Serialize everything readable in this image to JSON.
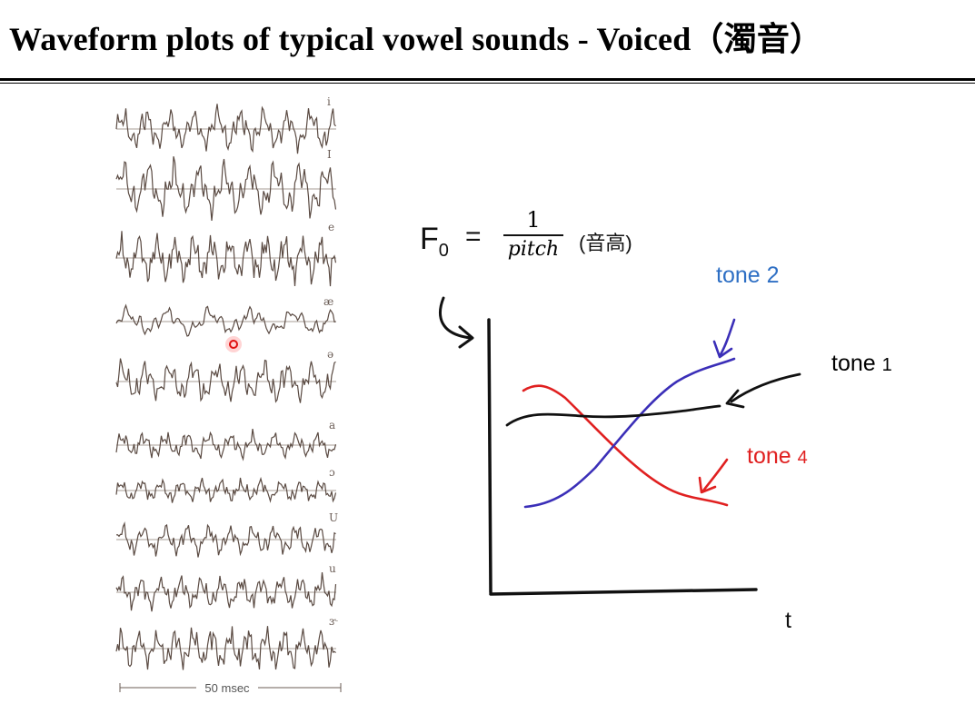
{
  "title": "Waveform plots of typical vowel sounds - Voiced（濁音）",
  "waveforms": {
    "vowels": [
      "i",
      "I",
      "e",
      "æ",
      "ə",
      "a",
      "ɔ",
      "U",
      "u",
      "ɝ"
    ],
    "scale_label": "50 msec"
  },
  "formula": {
    "lhs": "F",
    "lhs_sub": "0",
    "equals": "=",
    "numerator": "1",
    "denominator": "pitch",
    "note": "(音高)"
  },
  "tone_plot": {
    "x_axis_label": "t",
    "tones": [
      {
        "label": "tone",
        "number": "2",
        "color": "#2e6fc4"
      },
      {
        "label": "tone",
        "number": "1",
        "color": "#000000"
      },
      {
        "label": "tone",
        "number": "4",
        "color": "#e02020"
      }
    ]
  }
}
